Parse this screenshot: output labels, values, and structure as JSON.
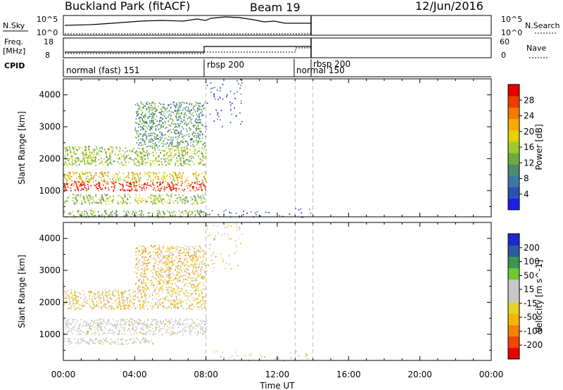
{
  "header": {
    "station": "Buckland Park (fitACF)",
    "beam": "Beam 19",
    "date": "12/Jun/2016"
  },
  "strips": {
    "nsky_label": "N.Sky",
    "nsky_ticks": [
      "10^5",
      "10^0"
    ],
    "nsky_ticks_right": [
      "10^5",
      "10^0"
    ],
    "nsearch_label": "N.Search",
    "freq_label_line1": "Freq.",
    "freq_label_line2": "[MHz]",
    "freq_ticks": [
      "18",
      "8"
    ],
    "nave_label": "Nave",
    "nave_ticks": [
      "60",
      "0"
    ],
    "cpid_label": "CPID",
    "cpid_entries": [
      "normal (fast) 151",
      "rbsp 200",
      "normal 150",
      "rbsp 200"
    ]
  },
  "axes": {
    "xlabel": "Time UT",
    "xticks": [
      "00:00",
      "04:00",
      "08:00",
      "12:00",
      "16:00",
      "20:00",
      "00:00"
    ],
    "ylabel": "Slant Range [km]",
    "yticks": [
      "1000",
      "2000",
      "3000",
      "4000"
    ]
  },
  "colorbars": {
    "power": {
      "label": "Power [dB]",
      "ticks": [
        "28",
        "24",
        "20",
        "16",
        "12",
        "8",
        "4"
      ],
      "colors": [
        "#1e1ee6",
        "#2d50b4",
        "#3c78a0",
        "#4b8c6e",
        "#6eaa3c",
        "#a0c832",
        "#e6d200",
        "#f5aa00",
        "#f57800",
        "#f03c00",
        "#e60000"
      ]
    },
    "velocity": {
      "label": "Velocity [m s^-1]",
      "ticks": [
        "200",
        "100",
        "50",
        "15",
        "-15",
        "-50",
        "-100",
        "-200"
      ],
      "colors": [
        "#e60000",
        "#f04600",
        "#f58200",
        "#f5b400",
        "#e6d228",
        "#c8c8c8",
        "#c8c8c8",
        "#6ec832",
        "#3c9650",
        "#2d5aa0",
        "#1e28d2"
      ]
    }
  },
  "chart_data": [
    {
      "type": "heatmap",
      "title": "Power",
      "xlabel": "Time UT",
      "ylabel": "Slant Range [km]",
      "xlim": [
        0,
        24
      ],
      "ylim": [
        180,
        4500
      ],
      "colorbar_label": "Power [dB]",
      "colorbar_range": [
        0,
        30
      ],
      "regions": [
        {
          "t": [
            0,
            8
          ],
          "r": [
            1000,
            1300
          ],
          "value": 28
        },
        {
          "t": [
            0,
            8
          ],
          "r": [
            1300,
            1600
          ],
          "value": 18
        },
        {
          "t": [
            0,
            8
          ],
          "r": [
            1800,
            2400
          ],
          "value": 14
        },
        {
          "t": [
            4,
            8
          ],
          "r": [
            2400,
            3800
          ],
          "value": 10
        },
        {
          "t": [
            0,
            8
          ],
          "r": [
            600,
            900
          ],
          "value": 14
        },
        {
          "t": [
            0,
            8
          ],
          "r": [
            180,
            400
          ],
          "value": 12
        },
        {
          "t": [
            8,
            10
          ],
          "r": [
            3000,
            4500
          ],
          "value": 4
        },
        {
          "t": [
            8,
            14
          ],
          "r": [
            180,
            500
          ],
          "value": 4
        }
      ]
    },
    {
      "type": "heatmap",
      "title": "Velocity",
      "xlabel": "Time UT",
      "ylabel": "Slant Range [km]",
      "xlim": [
        0,
        24
      ],
      "ylim": [
        180,
        4500
      ],
      "colorbar_label": "Velocity [m s^-1]",
      "colorbar_range": [
        -200,
        200
      ],
      "regions": [
        {
          "t": [
            0,
            8
          ],
          "r": [
            1000,
            1500
          ],
          "value": 0
        },
        {
          "t": [
            0,
            8
          ],
          "r": [
            1800,
            2400
          ],
          "value": -30
        },
        {
          "t": [
            4,
            8
          ],
          "r": [
            2400,
            3800
          ],
          "value": -40
        },
        {
          "t": [
            0,
            5
          ],
          "r": [
            700,
            900
          ],
          "value": 0
        },
        {
          "t": [
            8,
            10
          ],
          "r": [
            3000,
            4500
          ],
          "value": -30
        },
        {
          "t": [
            8,
            14
          ],
          "r": [
            180,
            500
          ],
          "value": 10
        }
      ]
    }
  ]
}
